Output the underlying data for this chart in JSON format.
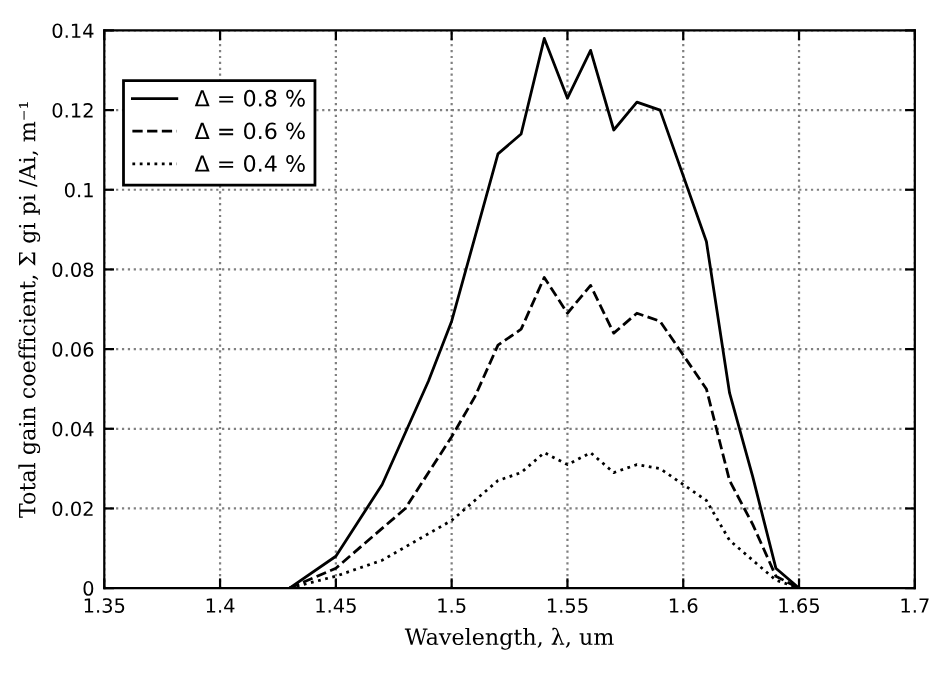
{
  "chart_data": {
    "type": "line",
    "xlabel": "Wavelength, λ, um",
    "ylabel": "Total gain coefficient, Σ gi pi /Ai, m⁻¹",
    "xlim": [
      1.35,
      1.7
    ],
    "xticks": [
      1.35,
      1.4,
      1.45,
      1.5,
      1.55,
      1.6,
      1.65,
      1.7
    ],
    "ylim": [
      0,
      0.14
    ],
    "yticks": [
      0,
      0.02,
      0.04,
      0.06,
      0.08,
      0.1,
      0.12,
      0.14
    ],
    "grid": true,
    "legend": "top left",
    "series": [
      {
        "name": "Δ = 0.8 %",
        "color": "#000000",
        "line_style": "solid",
        "x": [
          1.43,
          1.45,
          1.47,
          1.49,
          1.5,
          1.51,
          1.52,
          1.53,
          1.54,
          1.55,
          1.56,
          1.57,
          1.58,
          1.59,
          1.61,
          1.62,
          1.63,
          1.64,
          1.65
        ],
        "values": [
          0,
          0.008,
          0.026,
          0.052,
          0.067,
          0.088,
          0.109,
          0.114,
          0.138,
          0.123,
          0.135,
          0.115,
          0.122,
          0.12,
          0.087,
          0.049,
          0.028,
          0.005,
          0
        ]
      },
      {
        "name": "Δ = 0.6 %",
        "color": "#000000",
        "line_style": "dashed",
        "x": [
          1.43,
          1.45,
          1.48,
          1.5,
          1.51,
          1.52,
          1.53,
          1.54,
          1.55,
          1.56,
          1.57,
          1.58,
          1.59,
          1.61,
          1.62,
          1.63,
          1.64,
          1.65
        ],
        "values": [
          0,
          0.005,
          0.02,
          0.038,
          0.048,
          0.061,
          0.065,
          0.078,
          0.069,
          0.076,
          0.064,
          0.069,
          0.067,
          0.05,
          0.027,
          0.016,
          0.003,
          0
        ]
      },
      {
        "name": "Δ = 0.4 %",
        "color": "#000000",
        "line_style": "dotted",
        "x": [
          1.43,
          1.45,
          1.47,
          1.5,
          1.52,
          1.53,
          1.54,
          1.55,
          1.56,
          1.57,
          1.58,
          1.59,
          1.61,
          1.62,
          1.64,
          1.65
        ],
        "values": [
          0,
          0.003,
          0.007,
          0.017,
          0.027,
          0.029,
          0.034,
          0.031,
          0.034,
          0.029,
          0.031,
          0.03,
          0.022,
          0.012,
          0.002,
          0
        ]
      }
    ]
  }
}
